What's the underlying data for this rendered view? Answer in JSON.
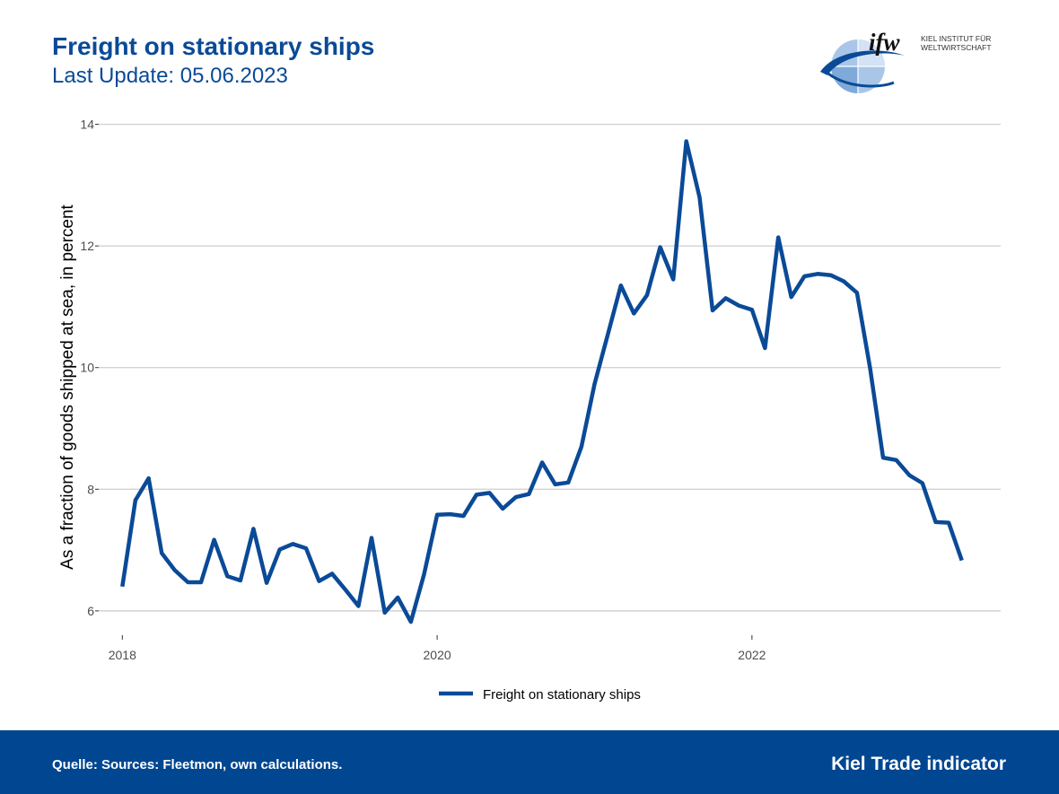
{
  "header": {
    "title": "Freight on stationary ships",
    "subtitle": "Last Update: 05.06.2023"
  },
  "logo": {
    "wordmark": "ifw",
    "line1": "KIEL INSTITUT FÜR",
    "line2": "WELTWIRTSCHAFT"
  },
  "footer": {
    "source": "Quelle: Sources: Fleetmon, own calculations.",
    "brand": "Kiel Trade indicator",
    "background_color": "#004691"
  },
  "colors": {
    "title": "#0a4a97",
    "series": "#0a4a97",
    "grid": "#d3d3d3"
  },
  "chart_data": {
    "type": "line",
    "title": "Freight on stationary ships",
    "ylabel": "As a fraction of goods shipped at sea, in percent",
    "xlabel": "",
    "ylim": [
      5.6,
      14.2
    ],
    "xlim": [
      2017.85,
      2023.58
    ],
    "yticks": [
      6,
      8,
      10,
      12,
      14
    ],
    "xticks": [
      2018,
      2020,
      2022
    ],
    "ytick_labels": [
      "6",
      "8",
      "10",
      "12",
      "14"
    ],
    "xtick_labels": [
      "2018",
      "2020",
      "2022"
    ],
    "grid": "horizontal",
    "legend_position": "bottom",
    "series": [
      {
        "name": "Freight on stationary ships",
        "color": "#0a4a97",
        "x": [
          2018.0,
          2018.083,
          2018.167,
          2018.25,
          2018.333,
          2018.417,
          2018.5,
          2018.583,
          2018.667,
          2018.75,
          2018.833,
          2018.917,
          2019.0,
          2019.083,
          2019.167,
          2019.25,
          2019.333,
          2019.417,
          2019.5,
          2019.583,
          2019.667,
          2019.75,
          2019.833,
          2019.917,
          2020.0,
          2020.083,
          2020.167,
          2020.25,
          2020.333,
          2020.417,
          2020.5,
          2020.583,
          2020.667,
          2020.75,
          2020.833,
          2020.917,
          2021.0,
          2021.083,
          2021.167,
          2021.25,
          2021.333,
          2021.417,
          2021.5,
          2021.583,
          2021.667,
          2021.75,
          2021.833,
          2021.917,
          2022.0,
          2022.083,
          2022.167,
          2022.25,
          2022.333,
          2022.417,
          2022.5,
          2022.583,
          2022.667,
          2022.75,
          2022.833,
          2022.917,
          2023.0,
          2023.083,
          2023.167,
          2023.25,
          2023.333
        ],
        "y": [
          6.4,
          7.82,
          8.18,
          6.95,
          6.67,
          6.47,
          6.47,
          7.17,
          6.57,
          6.5,
          7.35,
          6.46,
          7.01,
          7.1,
          7.03,
          6.49,
          6.61,
          6.35,
          6.08,
          7.2,
          5.97,
          6.22,
          5.82,
          6.6,
          7.58,
          7.59,
          7.56,
          7.91,
          7.94,
          7.68,
          7.87,
          7.92,
          8.44,
          8.08,
          8.11,
          8.7,
          9.73,
          10.53,
          11.35,
          10.89,
          11.19,
          11.98,
          11.45,
          13.72,
          12.8,
          10.94,
          11.14,
          11.02,
          10.95,
          10.32,
          12.14,
          11.16,
          11.5,
          11.54,
          11.52,
          11.42,
          11.23,
          10.0,
          8.52,
          8.48,
          8.23,
          8.1,
          7.46,
          7.45,
          6.83
        ]
      }
    ]
  }
}
